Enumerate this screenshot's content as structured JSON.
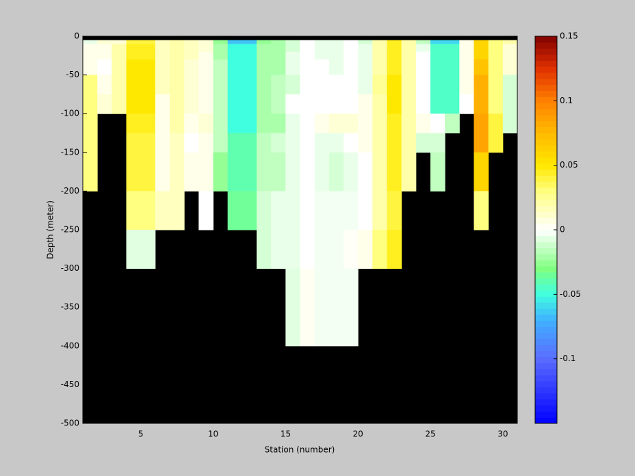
{
  "chart_data": {
    "type": "heatmap",
    "xlabel": "Station (number)",
    "ylabel": "Depth (meter)",
    "x_edges": [
      1,
      2,
      3,
      4,
      5,
      6,
      7,
      8,
      9,
      10,
      11,
      12,
      13,
      14,
      15,
      16,
      17,
      18,
      19,
      20,
      21,
      22,
      23,
      24,
      25,
      26,
      27,
      28,
      29,
      30,
      31
    ],
    "y_edges": [
      0,
      -5,
      -10,
      -20,
      -30,
      -50,
      -75,
      -100,
      -125,
      -150,
      -200,
      -250,
      -300,
      -400,
      -500
    ],
    "xlim": [
      1,
      31
    ],
    "ylim": [
      -500,
      0
    ],
    "xticks": [
      5,
      10,
      15,
      20,
      25,
      30
    ],
    "yticks": [
      0,
      -50,
      -100,
      -150,
      -200,
      -250,
      -300,
      -350,
      -400,
      -450,
      -500
    ],
    "clim": [
      -0.15,
      0.15
    ],
    "cticks": [
      -0.1,
      -0.05,
      0,
      0.05,
      0.1,
      0.15
    ],
    "nan_color": "#000000",
    "colormap": [
      [
        -0.15,
        "#0000ff"
      ],
      [
        -0.1,
        "#5a6cff"
      ],
      [
        -0.07,
        "#40b0ff"
      ],
      [
        -0.05,
        "#40ffe0"
      ],
      [
        -0.03,
        "#80ff80"
      ],
      [
        0,
        "#ffffff"
      ],
      [
        0.03,
        "#ffff80"
      ],
      [
        0.05,
        "#ffe800"
      ],
      [
        0.08,
        "#ffb000"
      ],
      [
        0.1,
        "#ff8000"
      ],
      [
        0.125,
        "#e03000"
      ],
      [
        0.15,
        "#800000"
      ]
    ],
    "z": [
      [
        null,
        null,
        null,
        null,
        null,
        null,
        null,
        null,
        null,
        null,
        null,
        null,
        null,
        null,
        null,
        null,
        null,
        null,
        null,
        null,
        null,
        null,
        null,
        null,
        null,
        null,
        null,
        null,
        null,
        null
      ],
      [
        -0.005,
        0.01,
        0.01,
        0.04,
        0.04,
        0.015,
        0.02,
        0.015,
        0.01,
        -0.025,
        -0.065,
        -0.065,
        -0.025,
        -0.02,
        -0.01,
        0,
        -0.005,
        -0.005,
        0,
        -0.01,
        0.02,
        0.045,
        0.02,
        -0.015,
        -0.06,
        -0.06,
        0.005,
        0.06,
        0.03,
        0.02
      ],
      [
        0.005,
        0.005,
        0.02,
        0.045,
        0.045,
        0.015,
        0.02,
        0.015,
        0.01,
        -0.02,
        -0.05,
        -0.05,
        -0.02,
        -0.02,
        -0.01,
        0,
        -0.005,
        -0.005,
        0,
        -0.005,
        0.02,
        0.045,
        0.02,
        -0.005,
        -0.045,
        -0.045,
        0.005,
        0.06,
        0.03,
        0.01
      ],
      [
        0.005,
        0.005,
        0.02,
        0.045,
        0.045,
        0.015,
        0.02,
        0.015,
        0.005,
        -0.02,
        -0.05,
        -0.05,
        -0.02,
        -0.02,
        -0.005,
        0,
        -0.005,
        -0.005,
        0,
        -0.005,
        0.02,
        0.045,
        0.02,
        0,
        -0.045,
        -0.045,
        0.005,
        0.06,
        0.03,
        0.01
      ],
      [
        0.005,
        0,
        0.02,
        0.05,
        0.05,
        0.015,
        0.02,
        0.01,
        0.005,
        -0.015,
        -0.05,
        -0.05,
        -0.02,
        -0.02,
        -0.005,
        0,
        0,
        -0.005,
        0,
        -0.005,
        0.02,
        0.045,
        0.02,
        0,
        -0.045,
        -0.045,
        0.005,
        0.07,
        0.03,
        0.01
      ],
      [
        0.03,
        0.005,
        0.02,
        0.05,
        0.05,
        0.015,
        0.02,
        0.01,
        0.005,
        -0.015,
        -0.05,
        -0.05,
        -0.02,
        -0.015,
        -0.01,
        0,
        0,
        0,
        0,
        -0.005,
        0.025,
        0.05,
        0.02,
        0,
        -0.045,
        -0.045,
        0.005,
        0.08,
        0.03,
        -0.01
      ],
      [
        0.03,
        0.01,
        0.02,
        0.05,
        0.05,
        0.005,
        0.02,
        0.01,
        0.005,
        -0.015,
        -0.05,
        -0.05,
        -0.02,
        -0.015,
        0,
        0,
        0,
        0,
        0,
        0.005,
        0.02,
        0.05,
        0.02,
        0,
        -0.045,
        -0.045,
        0,
        0.08,
        0.03,
        -0.01
      ],
      [
        0.03,
        null,
        null,
        0.045,
        0.045,
        0.005,
        0.02,
        0.005,
        0.01,
        -0.015,
        -0.05,
        -0.05,
        -0.02,
        -0.02,
        -0.005,
        0,
        0.005,
        0.01,
        0.01,
        0.005,
        0.02,
        0.045,
        0.02,
        0.005,
        0,
        -0.015,
        null,
        0.085,
        0.04,
        -0.01
      ],
      [
        0.03,
        null,
        null,
        0.04,
        0.04,
        0.005,
        0.015,
        0,
        0.005,
        -0.015,
        -0.04,
        -0.04,
        -0.015,
        -0.01,
        -0.005,
        0,
        -0.005,
        -0.005,
        0,
        0.005,
        0.02,
        0.045,
        0.02,
        -0.01,
        -0.01,
        null,
        null,
        0.085,
        0.04,
        null
      ],
      [
        0.03,
        null,
        null,
        0.04,
        0.04,
        0.005,
        0.015,
        0.005,
        0.005,
        -0.025,
        -0.04,
        -0.04,
        -0.015,
        -0.015,
        -0.005,
        0,
        -0.005,
        -0.01,
        -0.005,
        0,
        0.02,
        0.045,
        0.02,
        null,
        -0.015,
        null,
        null,
        0.06,
        null,
        null
      ],
      [
        null,
        null,
        null,
        0.03,
        0.03,
        0.015,
        0.015,
        null,
        0,
        null,
        -0.035,
        -0.035,
        -0.01,
        -0.005,
        -0.005,
        0,
        -0.003,
        -0.003,
        -0.003,
        0,
        0.02,
        0.04,
        null,
        null,
        null,
        null,
        null,
        0.03,
        null,
        null
      ],
      [
        null,
        null,
        null,
        -0.007,
        -0.007,
        null,
        null,
        null,
        null,
        null,
        null,
        null,
        -0.01,
        -0.005,
        -0.005,
        0,
        -0.003,
        -0.003,
        0.002,
        0.005,
        0.03,
        0.045,
        null,
        null,
        null,
        null,
        null,
        null,
        null,
        null
      ],
      [
        null,
        null,
        null,
        null,
        null,
        null,
        null,
        null,
        null,
        null,
        null,
        null,
        null,
        null,
        -0.007,
        0.003,
        -0.003,
        -0.003,
        -0.003,
        null,
        null,
        null,
        null,
        null,
        null,
        null,
        null,
        null,
        null,
        null
      ],
      [
        null,
        null,
        null,
        null,
        null,
        null,
        null,
        null,
        null,
        null,
        null,
        null,
        null,
        null,
        null,
        null,
        null,
        null,
        null,
        null,
        null,
        null,
        null,
        null,
        null,
        null,
        null,
        null,
        null,
        null
      ]
    ]
  }
}
